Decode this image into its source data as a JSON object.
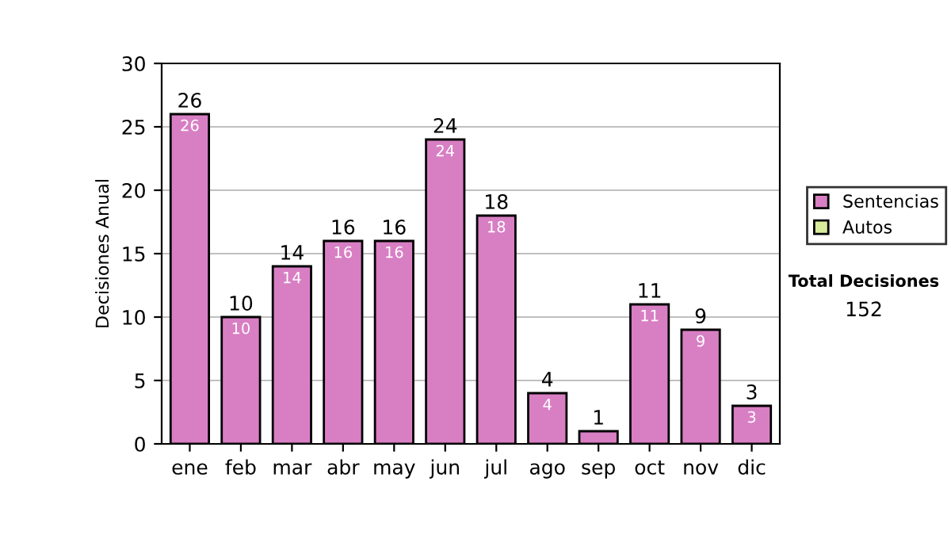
{
  "chart_data": {
    "type": "bar",
    "stacked": true,
    "ylabel": "Decisiones Anual",
    "categories": [
      "ene",
      "feb",
      "mar",
      "abr",
      "may",
      "jun",
      "jul",
      "ago",
      "sep",
      "oct",
      "nov",
      "dic"
    ],
    "series": [
      {
        "name": "Sentencias",
        "color": "#d87fc4",
        "values": [
          26,
          10,
          14,
          16,
          16,
          24,
          18,
          4,
          1,
          11,
          9,
          3
        ],
        "value_labels": [
          "26",
          "10",
          "14",
          "16",
          "16",
          "24",
          "18",
          "4",
          null,
          "11",
          "9",
          "3"
        ]
      },
      {
        "name": "Autos",
        "color": "#d8ec9c",
        "values": [
          0,
          0,
          0,
          0,
          0,
          0,
          0,
          0,
          0,
          0,
          0,
          0
        ]
      }
    ],
    "totals": [
      "26",
      "10",
      "14",
      "16",
      "16",
      "24",
      "18",
      "4",
      "1",
      "11",
      "9",
      "3"
    ],
    "ylim": [
      0,
      30
    ],
    "yticks": [
      0,
      5,
      10,
      15,
      20,
      25,
      30
    ],
    "grid": "y",
    "legend": "right",
    "annotations": [
      "Total Decisiones",
      "152"
    ]
  }
}
